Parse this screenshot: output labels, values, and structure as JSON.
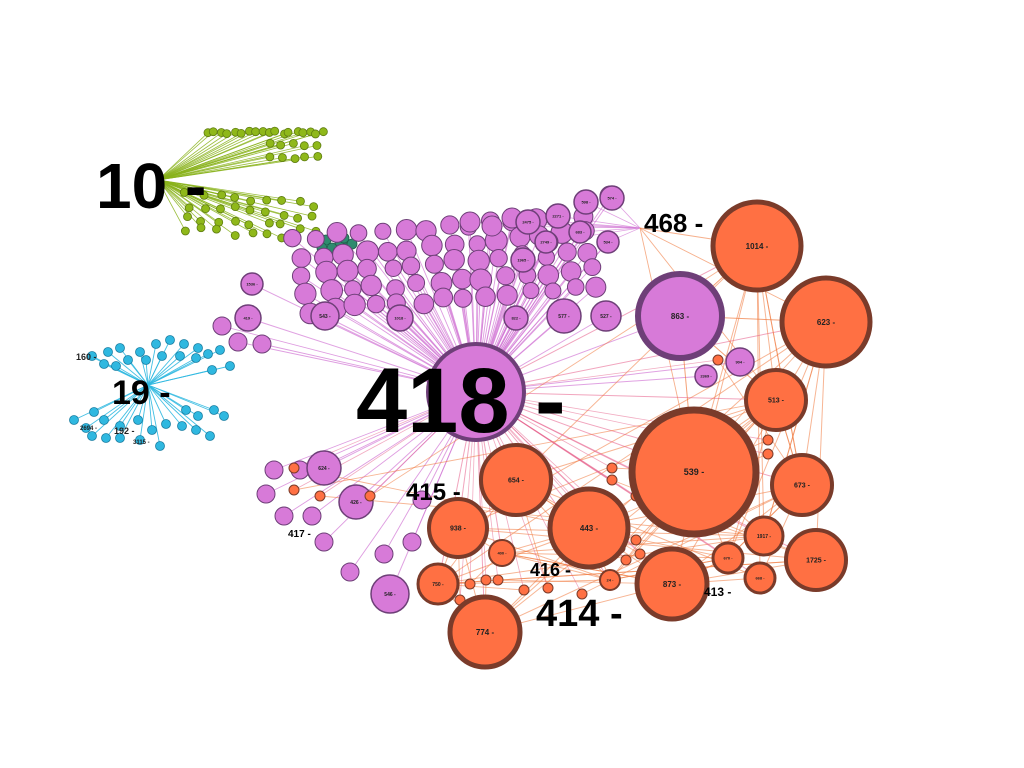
{
  "colors": {
    "green": "#8fb81a",
    "green_edge": "#8ab31c",
    "green_stroke": "#5e7c10",
    "teal": "#2e8b6e",
    "cyan": "#2fb8e0",
    "cyan_stroke": "#1a7fa3",
    "purple": "#d77ad8",
    "purple_stroke": "#6e3f78",
    "purple_edge": "#d37bd6",
    "orange": "#ff7043",
    "orange_stroke": "#7a3b2a",
    "orange_edge": "#f0793d",
    "pink_edge": "#e55a86"
  },
  "hubs": [
    {
      "id": "10",
      "label": "10 -",
      "group": "green"
    },
    {
      "id": "19",
      "label": "19 -",
      "group": "cyan"
    },
    {
      "id": "418",
      "label": "418 -",
      "group": "purple"
    },
    {
      "id": "468",
      "label": "468 -",
      "group": "purple"
    },
    {
      "id": "415",
      "label": "415 -",
      "group": "orange"
    },
    {
      "id": "416",
      "label": "416 -",
      "group": "orange"
    },
    {
      "id": "414",
      "label": "414 -",
      "group": "orange"
    },
    {
      "id": "413",
      "label": "413 -",
      "group": "orange"
    },
    {
      "id": "417",
      "label": "417 -",
      "group": "purple"
    }
  ],
  "side_labels": {
    "cyan_left": "160 -",
    "cyan_bottom_a": "2694 -",
    "cyan_bottom_b": "192 -",
    "cyan_bottom_c": "3115 -"
  },
  "orange_nodes": [
    {
      "label": "1014 -"
    },
    {
      "label": "623 -"
    },
    {
      "label": "513 -"
    },
    {
      "label": "539 -"
    },
    {
      "label": "673 -"
    },
    {
      "label": "654 -"
    },
    {
      "label": "443 -"
    },
    {
      "label": "938 -"
    },
    {
      "label": "873 -"
    },
    {
      "label": "774 -"
    },
    {
      "label": "1725 -"
    },
    {
      "label": "1917 -"
    },
    {
      "label": "750 -"
    },
    {
      "label": "670 -"
    },
    {
      "label": "668 -"
    },
    {
      "label": "400 -"
    },
    {
      "label": "24 -"
    }
  ],
  "purple_nodes": [
    {
      "label": "863 -"
    },
    {
      "label": "577 -"
    },
    {
      "label": "527 -"
    },
    {
      "label": "624 -"
    },
    {
      "label": "426 -"
    },
    {
      "label": "546 -"
    },
    {
      "label": "543 -"
    },
    {
      "label": "1018 -"
    },
    {
      "label": "822 -"
    },
    {
      "label": "2475 -"
    },
    {
      "label": "1965 -"
    },
    {
      "label": "2749 -"
    },
    {
      "label": "683 -"
    },
    {
      "label": "534 -"
    },
    {
      "label": "2369 -"
    },
    {
      "label": "904 -"
    },
    {
      "label": "419 -"
    },
    {
      "label": "1536 -"
    },
    {
      "label": "2271 -"
    },
    {
      "label": "598 -"
    },
    {
      "label": "574 -"
    }
  ]
}
